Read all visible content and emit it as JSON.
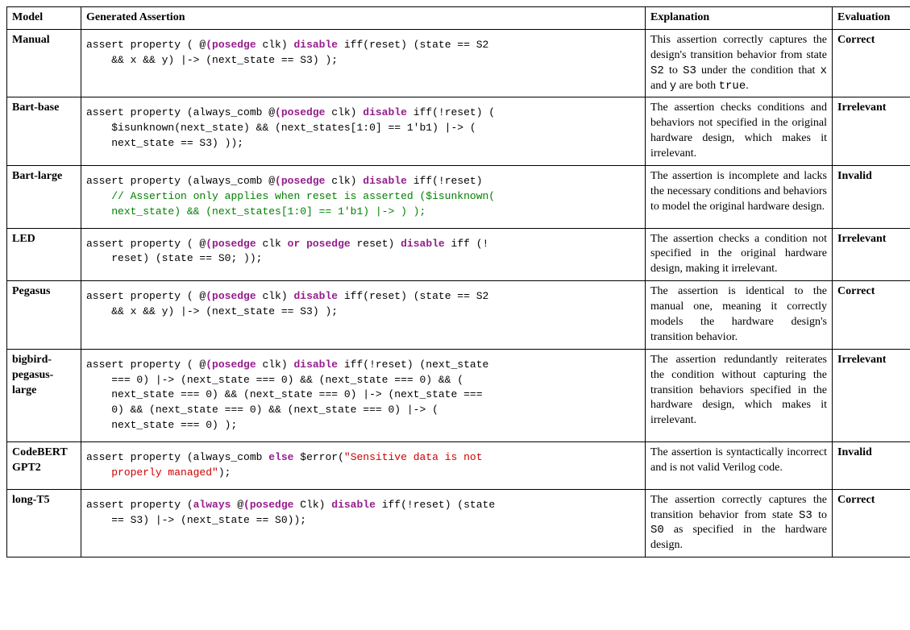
{
  "table": {
    "headers": [
      "Model",
      "Generated Assertion",
      "Explanation",
      "Evaluation"
    ],
    "rows": [
      {
        "model": "Manual",
        "code": [
          {
            "text": "assert property ( @",
            "cls": ""
          },
          {
            "text": "(posedge",
            "cls": "kw purple"
          },
          {
            "text": " clk) ",
            "cls": ""
          },
          {
            "text": "disable",
            "cls": "kw purple"
          },
          {
            "text": " iff(reset) (state == S2\n    && x && y) |-> (next_state == S3) );",
            "cls": ""
          }
        ],
        "explanation": [
          {
            "text": "This assertion correctly captures the design's transition behavior from state "
          },
          {
            "text": "S2",
            "tt": true
          },
          {
            "text": " to "
          },
          {
            "text": "S3",
            "tt": true
          },
          {
            "text": " under the condition that "
          },
          {
            "text": "x",
            "tt": true
          },
          {
            "text": " and "
          },
          {
            "text": "y",
            "tt": true
          },
          {
            "text": " are both "
          },
          {
            "text": "true",
            "tt": true
          },
          {
            "text": "."
          }
        ],
        "evaluation": "Correct"
      },
      {
        "model": "Bart-base",
        "code": [
          {
            "text": "assert property (always_comb @",
            "cls": ""
          },
          {
            "text": "(posedge",
            "cls": "kw purple"
          },
          {
            "text": " clk) ",
            "cls": ""
          },
          {
            "text": "disable",
            "cls": "kw purple"
          },
          {
            "text": " iff(!reset) (\n    $isunknown(next_state) && (next_states[1:0] == 1'b1) |-> (\n    next_state == S3) ));",
            "cls": ""
          }
        ],
        "explanation": [
          {
            "text": "The assertion checks conditions and behaviors not specified in the original hardware design, which makes it irrelevant."
          }
        ],
        "evaluation": "Irrelevant"
      },
      {
        "model": "Bart-large",
        "code": [
          {
            "text": "assert property (always_comb @",
            "cls": ""
          },
          {
            "text": "(posedge",
            "cls": "kw purple"
          },
          {
            "text": " clk) ",
            "cls": ""
          },
          {
            "text": "disable",
            "cls": "kw purple"
          },
          {
            "text": " iff(!reset)\n    ",
            "cls": ""
          },
          {
            "text": "// Assertion only applies when reset is asserted ($isunknown(\n    next_state) && (next_states[1:0] == 1'b1) |-> ) );",
            "cls": "green"
          }
        ],
        "explanation": [
          {
            "text": "The assertion is incomplete and lacks the necessary conditions and behaviors to model the original hardware design."
          }
        ],
        "evaluation": "Invalid"
      },
      {
        "model": "LED",
        "code": [
          {
            "text": "assert property ( @",
            "cls": ""
          },
          {
            "text": "(posedge",
            "cls": "kw purple"
          },
          {
            "text": " clk ",
            "cls": ""
          },
          {
            "text": "or posedge",
            "cls": "kw purple"
          },
          {
            "text": " reset) ",
            "cls": ""
          },
          {
            "text": "disable",
            "cls": "kw purple"
          },
          {
            "text": " iff (!\n    reset) (state == S0; ));",
            "cls": ""
          }
        ],
        "explanation": [
          {
            "text": "The assertion checks a condition not specified in the original hardware design, making it irrelevant."
          }
        ],
        "evaluation": "Irrelevant"
      },
      {
        "model": "Pegasus",
        "code": [
          {
            "text": "assert property ( @",
            "cls": ""
          },
          {
            "text": "(posedge",
            "cls": "kw purple"
          },
          {
            "text": " clk) ",
            "cls": ""
          },
          {
            "text": "disable",
            "cls": "kw purple"
          },
          {
            "text": " iff(reset) (state == S2\n    && x && y) |-> (next_state == S3) );",
            "cls": ""
          }
        ],
        "explanation": [
          {
            "text": "The assertion is identical to the manual one, meaning it correctly models the hardware design's transition behavior."
          }
        ],
        "evaluation": "Correct"
      },
      {
        "model": "bigbird-pegasus-large",
        "code": [
          {
            "text": "assert property ( @",
            "cls": ""
          },
          {
            "text": "(posedge",
            "cls": "kw purple"
          },
          {
            "text": " clk) ",
            "cls": ""
          },
          {
            "text": "disable",
            "cls": "kw purple"
          },
          {
            "text": " iff(!reset) (next_state\n    === 0) |-> (next_state === 0) && (next_state === 0) && (\n    next_state === 0) && (next_state === 0) |-> (next_state ===\n    0) && (next_state === 0) && (next_state === 0) |-> (\n    next_state === 0) );",
            "cls": ""
          }
        ],
        "explanation": [
          {
            "text": "The assertion redundantly reiterates the condition without capturing the transition behaviors specified in the hardware design, which makes it irrelevant."
          }
        ],
        "evaluation": "Irrelevant"
      },
      {
        "model": "CodeBERT GPT2",
        "code": [
          {
            "text": "assert property (always_comb ",
            "cls": ""
          },
          {
            "text": "else",
            "cls": "kw purple"
          },
          {
            "text": " $error(",
            "cls": ""
          },
          {
            "text": "\"Sensitive data is not\n    properly managed\"",
            "cls": "red"
          },
          {
            "text": ");",
            "cls": ""
          }
        ],
        "explanation": [
          {
            "text": "The assertion is syntactically incorrect and is not valid Verilog code."
          }
        ],
        "evaluation": "Invalid"
      },
      {
        "model": "long-T5",
        "code": [
          {
            "text": "assert property (",
            "cls": ""
          },
          {
            "text": "always",
            "cls": "kw purple"
          },
          {
            "text": " @",
            "cls": ""
          },
          {
            "text": "(posedge",
            "cls": "kw purple"
          },
          {
            "text": " Clk) ",
            "cls": ""
          },
          {
            "text": "disable",
            "cls": "kw purple"
          },
          {
            "text": " iff(!reset) (state\n    == S3) |-> (next_state == S0));",
            "cls": ""
          }
        ],
        "explanation": [
          {
            "text": "The assertion correctly captures the transition behavior from state "
          },
          {
            "text": "S3",
            "tt": true
          },
          {
            "text": " to "
          },
          {
            "text": "S0",
            "tt": true
          },
          {
            "text": " as specified in the hardware design."
          }
        ],
        "evaluation": "Correct"
      }
    ]
  }
}
